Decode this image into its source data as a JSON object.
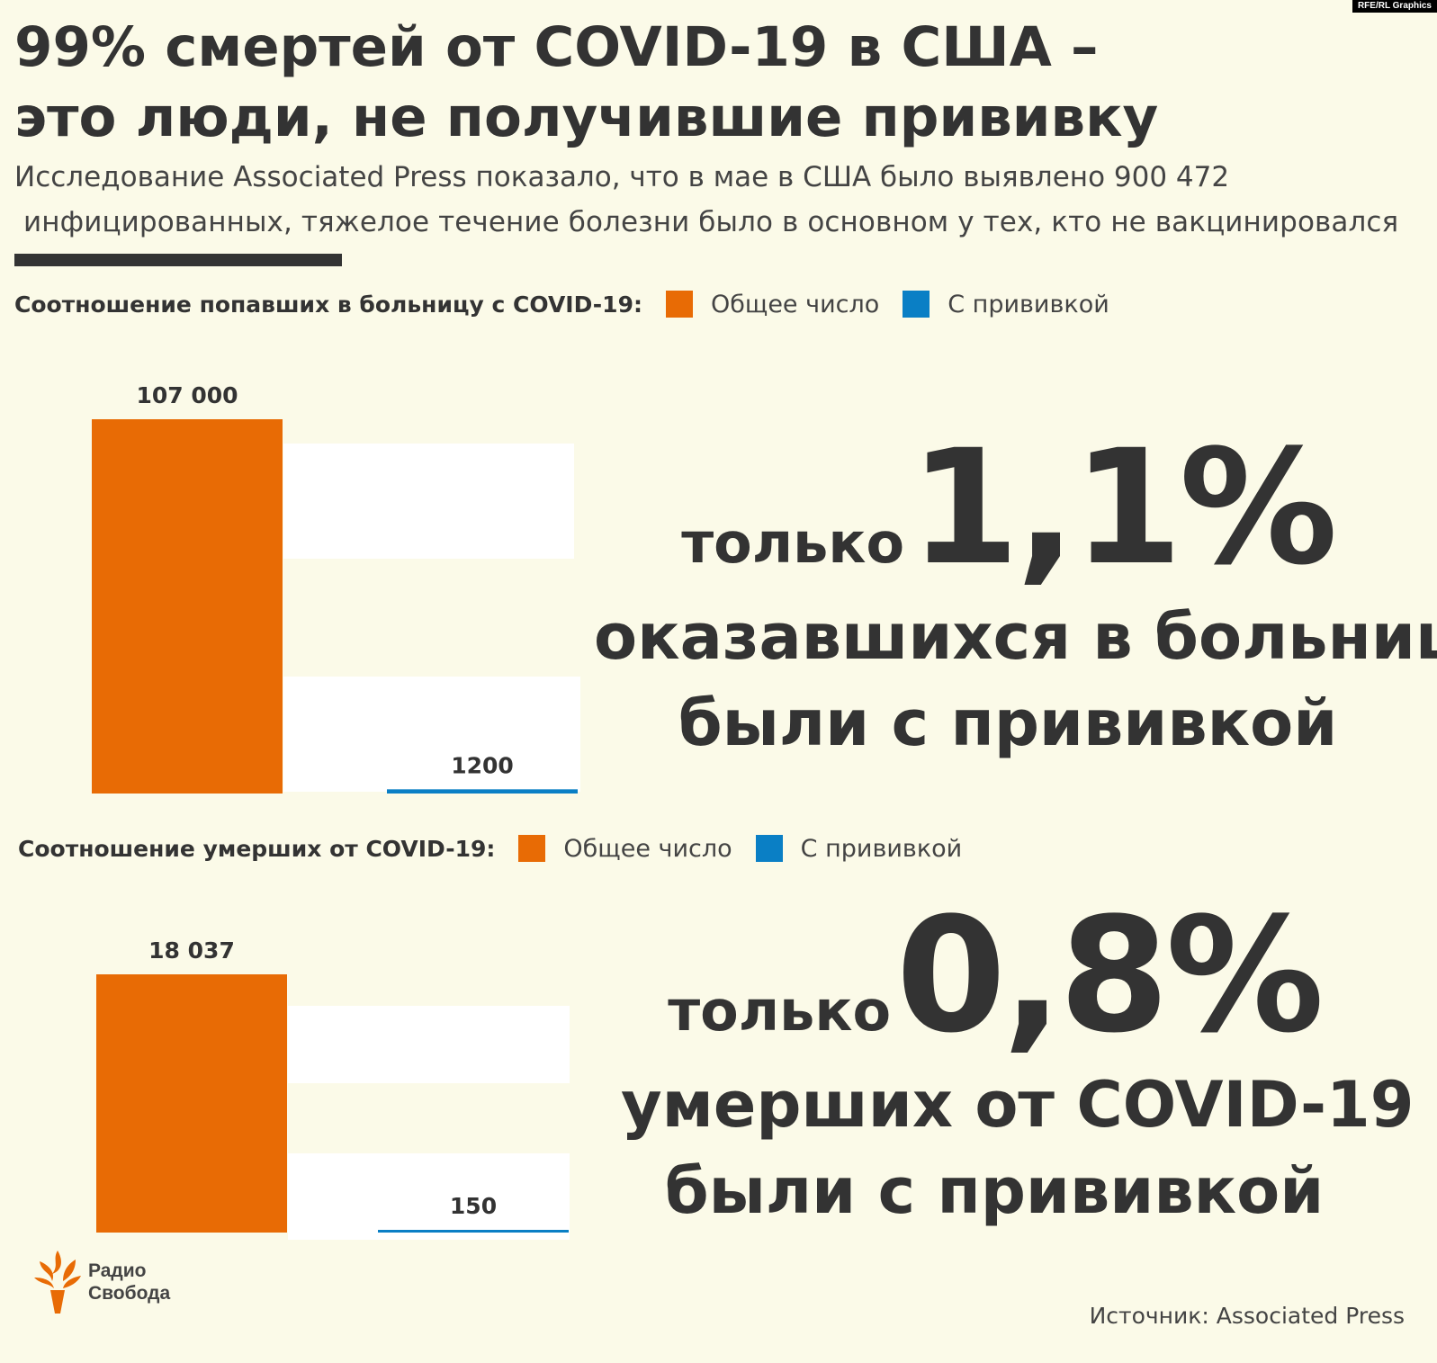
{
  "credit": "RFE/RL Graphics",
  "title_line1": "99% смертей от COVID-19 в США –",
  "title_line2": "это люди, не получившие прививку",
  "subtitle_line1": "Исследование Associated Press показало, что в мае в США было выявлено 900 472",
  "subtitle_line2": "инфицированных, тяжелое течение болезни было в основном у тех, кто не вакцинировался",
  "colors": {
    "total": "#e86b05",
    "vaccinated": "#0a7fc5",
    "background": "#fbfae8",
    "panel": "#ffffff"
  },
  "legend1": {
    "title": "Соотношение попавших в больницу с COVID-19",
    "colon": ":",
    "total_label": "Общее число",
    "vaccinated_label": "С прививкой"
  },
  "legend2": {
    "title": "Соотношение умерших от COVID-19",
    "colon": ":",
    "total_label": "Общее число",
    "vaccinated_label": "С прививкой"
  },
  "stat1": {
    "prefix": "только",
    "percent": "1,1%",
    "line2": "оказавшихся в больнице",
    "line3": "были с прививкой"
  },
  "stat2": {
    "prefix": "только",
    "percent": "0,8%",
    "line2": "умерших от COVID-19",
    "line3": "были с прививкой"
  },
  "logo": {
    "line1": "Радио",
    "line2": "Свобода"
  },
  "source": "Источник: Associated Press",
  "chart_data": [
    {
      "type": "bar",
      "categories": [
        "Общее число",
        "С прививкой"
      ],
      "values": [
        107000,
        1200
      ],
      "value_labels": [
        "107 000",
        "1200"
      ],
      "ylim": [
        0,
        107000
      ]
    },
    {
      "type": "bar",
      "categories": [
        "Общее число",
        "С прививкой"
      ],
      "values": [
        18037,
        150
      ],
      "value_labels": [
        "18 037",
        "150"
      ],
      "ylim": [
        0,
        18037
      ]
    }
  ]
}
